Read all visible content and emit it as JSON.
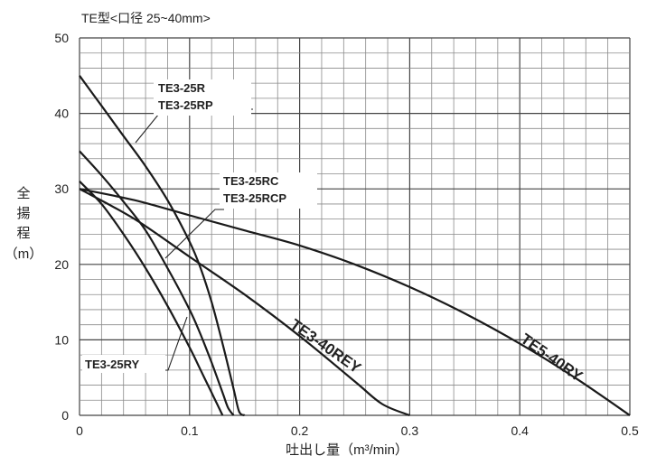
{
  "chart_data": {
    "type": "line",
    "title": "TE型<口径 25~40mm>",
    "xlabel": "吐出し量（m³/min）",
    "ylabel_chars": [
      "全",
      "揚",
      "程",
      "（m）"
    ],
    "xlim": [
      0,
      0.5
    ],
    "ylim": [
      0,
      50
    ],
    "x_ticks": [
      "0",
      "0.1",
      "0.2",
      "0.3",
      "0.4",
      "0.5"
    ],
    "y_ticks": [
      "0",
      "10",
      "20",
      "30",
      "40",
      "50"
    ],
    "grid": true,
    "series": [
      {
        "name": "TE3-25R / TE3-25RP",
        "x": [
          0,
          0.02,
          0.04,
          0.06,
          0.08,
          0.1,
          0.11,
          0.12,
          0.13,
          0.14,
          0.145,
          0.15
        ],
        "y": [
          45,
          41,
          37,
          33,
          28.5,
          23,
          19.5,
          15,
          9.5,
          3.5,
          0.5,
          0
        ]
      },
      {
        "name": "TE3-25RC / TE3-25RCP",
        "x": [
          0,
          0.02,
          0.04,
          0.06,
          0.08,
          0.1,
          0.11,
          0.12,
          0.13,
          0.135,
          0.14
        ],
        "y": [
          35,
          31.8,
          28.3,
          24.5,
          19.5,
          14,
          10.7,
          7,
          3,
          1,
          0
        ]
      },
      {
        "name": "TE3-25RY",
        "x": [
          0,
          0.02,
          0.04,
          0.06,
          0.08,
          0.1,
          0.11,
          0.12,
          0.125,
          0.13
        ],
        "y": [
          31,
          28,
          24,
          19.5,
          14.5,
          9,
          6,
          3,
          1.5,
          0
        ]
      },
      {
        "name": "TE3-40REY",
        "x": [
          0,
          0.05,
          0.1,
          0.15,
          0.2,
          0.25,
          0.275,
          0.3
        ],
        "y": [
          30,
          26,
          21,
          16,
          10.5,
          4.5,
          1.5,
          0
        ]
      },
      {
        "name": "TE5-40RY",
        "x": [
          0,
          0.05,
          0.1,
          0.15,
          0.2,
          0.25,
          0.3,
          0.35,
          0.4,
          0.45,
          0.5
        ],
        "y": [
          30,
          28.5,
          26.5,
          24.5,
          22.5,
          20,
          17,
          13.5,
          9.5,
          5,
          0
        ]
      }
    ],
    "labels": {
      "te3_25r": "TE3-25R",
      "te3_25rp": "TE3-25RP",
      "te3_25rc": "TE3-25RC",
      "te3_25rcp": "TE3-25RCP",
      "te3_25ry": "TE3-25RY",
      "te3_40rey": "TE3-40REY",
      "te5_40ry": "TE5-40RY"
    }
  }
}
